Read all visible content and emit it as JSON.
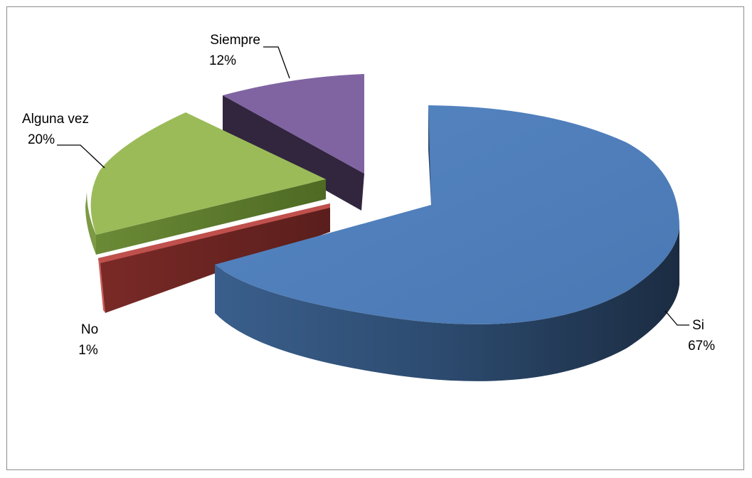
{
  "chart_data": {
    "type": "pie",
    "style": "3d-exploded",
    "title": "",
    "legend": "none",
    "slices": [
      {
        "name": "Si",
        "value": 67,
        "label": "67%",
        "color": "#4F81BD"
      },
      {
        "name": "No",
        "value": 1,
        "label": "1%",
        "color": "#C0504D"
      },
      {
        "name": "Alguna vez",
        "value": 20,
        "label": "20%",
        "color": "#9BBB59"
      },
      {
        "name": "Siempre",
        "value": 12,
        "label": "12%",
        "color": "#8064A2"
      }
    ]
  }
}
